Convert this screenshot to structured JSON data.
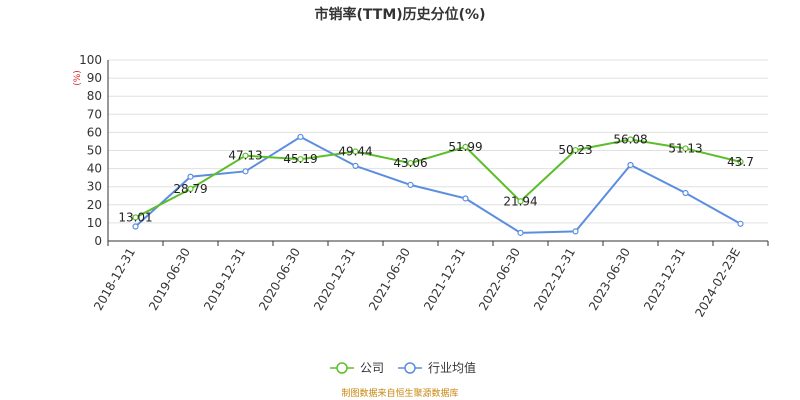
{
  "chart_data": {
    "type": "line",
    "title": "市销率(TTM)历史分位(%)",
    "ylabel_unit": "(%)",
    "ylim": [
      0,
      100
    ],
    "yticks": [
      0,
      10,
      20,
      30,
      40,
      50,
      60,
      70,
      80,
      90,
      100
    ],
    "categories": [
      "2018-12-31",
      "2019-06-30",
      "2019-12-31",
      "2020-06-30",
      "2020-12-31",
      "2021-06-30",
      "2021-12-31",
      "2022-06-30",
      "2022-12-31",
      "2023-06-30",
      "2023-12-31",
      "2024-02-23E"
    ],
    "series": [
      {
        "name": "公司",
        "color": "#5cbf2a",
        "values": [
          13.01,
          28.79,
          47.13,
          45.19,
          49.44,
          43.06,
          51.99,
          21.94,
          50.23,
          56.08,
          51.13,
          43.7
        ],
        "labels": [
          "13.01",
          "28.79",
          "47.13",
          "45.19",
          "49.44",
          "43.06",
          "51.99",
          "21.94",
          "50.23",
          "56.08",
          "51.13",
          "43.7"
        ]
      },
      {
        "name": "行业均值",
        "color": "#5b8ee0",
        "values": [
          8,
          35.5,
          38.5,
          57.5,
          41.5,
          31,
          23.5,
          4.5,
          5.3,
          42,
          26.5,
          9.5
        ]
      }
    ],
    "grid": true,
    "legend_position": "bottom-center",
    "source": "制图数据来自恒生聚源数据库"
  }
}
